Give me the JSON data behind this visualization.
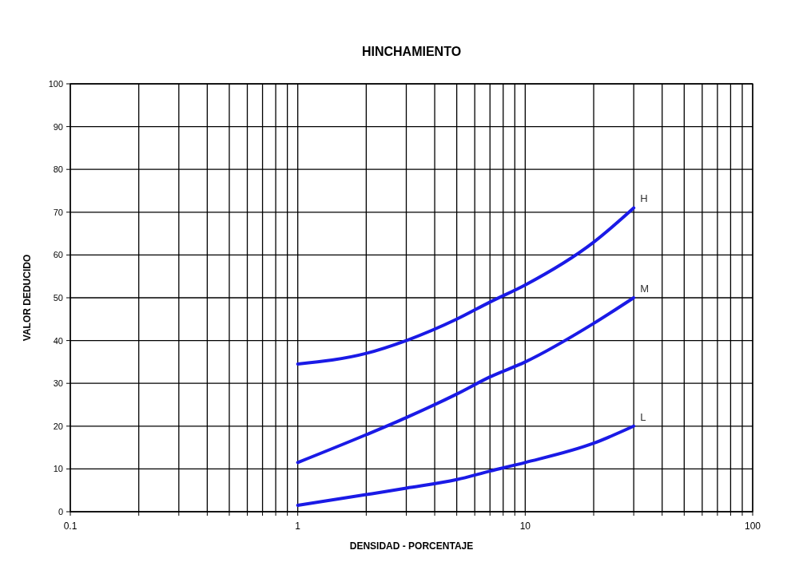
{
  "chart_data": {
    "type": "line",
    "title": "HINCHAMIENTO",
    "xlabel": "DENSIDAD - PORCENTAJE",
    "ylabel": "VALOR DEDUCIDO",
    "log": "x",
    "grid": true,
    "marker": "none",
    "line_style": "solid",
    "x": [
      1,
      2,
      3,
      5,
      7,
      10,
      20,
      30
    ],
    "series": [
      {
        "name": "H",
        "color": "#1a1ae6",
        "values": [
          34.5,
          37,
          40,
          45,
          49,
          53,
          63,
          71
        ]
      },
      {
        "name": "M",
        "color": "#1a1ae6",
        "values": [
          11.5,
          18,
          22,
          27.5,
          31.5,
          35,
          44,
          50
        ]
      },
      {
        "name": "L",
        "color": "#1a1ae6",
        "values": [
          1.5,
          4,
          5.5,
          7.5,
          9.5,
          11.5,
          16,
          20
        ]
      }
    ],
    "xlim": [
      0.1,
      100
    ],
    "ylim": [
      0,
      100
    ],
    "xticks": [
      0.1,
      {
        "value": 0.2,
        "label": null
      },
      {
        "value": 0.3,
        "label": null
      },
      {
        "value": 0.4,
        "label": null
      },
      {
        "value": 0.5,
        "label": null
      },
      {
        "value": 0.6,
        "label": null
      },
      {
        "value": 0.7,
        "label": null
      },
      {
        "value": 0.8,
        "label": null
      },
      {
        "value": 0.9,
        "label": null
      },
      1,
      {
        "value": 2,
        "label": null
      },
      {
        "value": 3,
        "label": null
      },
      {
        "value": 4,
        "label": null
      },
      {
        "value": 5,
        "label": null
      },
      {
        "value": 6,
        "label": null
      },
      {
        "value": 7,
        "label": null
      },
      {
        "value": 8,
        "label": null
      },
      {
        "value": 9,
        "label": null
      },
      10,
      {
        "value": 20,
        "label": null
      },
      {
        "value": 30,
        "label": null
      },
      {
        "value": 40,
        "label": null
      },
      {
        "value": 50,
        "label": null
      },
      {
        "value": 60,
        "label": null
      },
      {
        "value": 70,
        "label": null
      },
      {
        "value": 80,
        "label": null
      },
      {
        "value": 90,
        "label": null
      },
      100
    ],
    "yticks": [
      0,
      10,
      20,
      30,
      40,
      50,
      60,
      70,
      80,
      90,
      100
    ]
  }
}
